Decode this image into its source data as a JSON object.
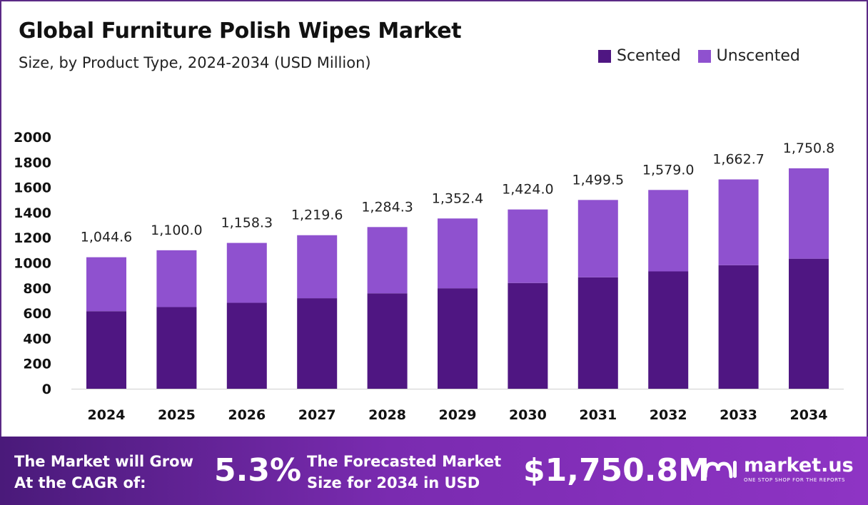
{
  "header": {
    "title": "Global Furniture Polish Wipes Market",
    "subtitle": "Size, by  Product Type, 2024-2034 (USD Million)"
  },
  "colors": {
    "scented": "#4f1682",
    "unscented": "#8f51cf",
    "footer_start": "#4a1a7a",
    "footer_end": "#8e34c4"
  },
  "chart_data": {
    "type": "bar",
    "stacked": true,
    "title": "Global Furniture Polish Wipes Market",
    "categories": [
      "2024",
      "2025",
      "2026",
      "2027",
      "2028",
      "2029",
      "2030",
      "2031",
      "2032",
      "2033",
      "2034"
    ],
    "series": [
      {
        "name": "Scented",
        "values": [
          616,
          649,
          683,
          719,
          758,
          798,
          840,
          885,
          932,
          981,
          1033
        ]
      },
      {
        "name": "Unscented",
        "values": [
          428.6,
          451.0,
          475.3,
          500.6,
          526.3,
          554.4,
          584.0,
          614.5,
          647.0,
          681.7,
          717.8
        ]
      }
    ],
    "totals": [
      1044.6,
      1100.0,
      1158.3,
      1219.6,
      1284.3,
      1352.4,
      1424.0,
      1499.5,
      1579.0,
      1662.7,
      1750.8
    ],
    "total_labels": [
      "1,044.6",
      "1,100.0",
      "1,158.3",
      "1,219.6",
      "1,284.3",
      "1,352.4",
      "1,424.0",
      "1,499.5",
      "1,579.0",
      "1,662.7",
      "1,750.8"
    ],
    "yticks": [
      0,
      200,
      400,
      600,
      800,
      1000,
      1200,
      1400,
      1600,
      1800,
      2000
    ],
    "ylim": [
      0,
      2000
    ],
    "grid": false,
    "legend_position": "top-right"
  },
  "footer": {
    "cagr_label": "The Market will Grow At the CAGR of:",
    "cagr_value": "5.3%",
    "size_label": "The Forecasted Market Size for 2034 in USD",
    "size_value": "$1,750.8M",
    "brand_name": "market.us",
    "brand_tagline": "ONE STOP SHOP FOR THE REPORTS"
  }
}
